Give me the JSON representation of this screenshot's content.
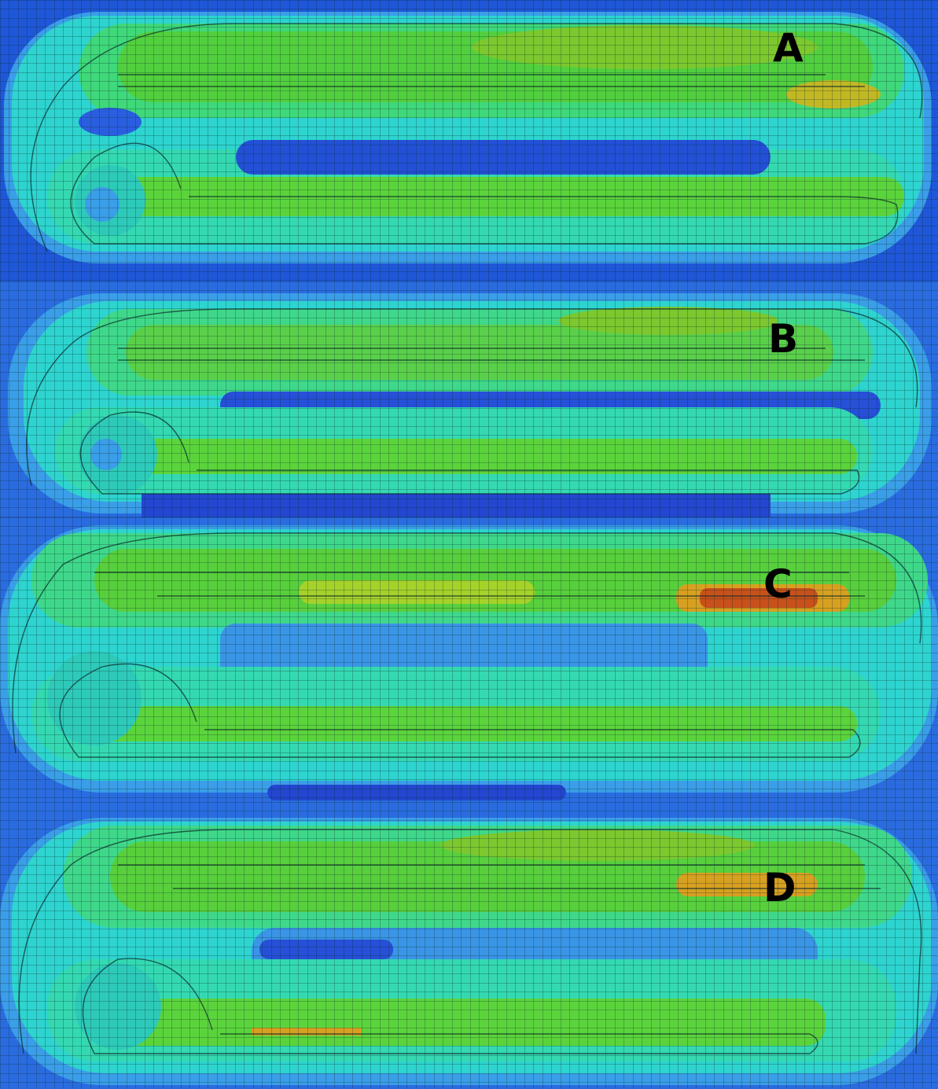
{
  "panels": [
    {
      "id": "a",
      "label": "A"
    },
    {
      "id": "b",
      "label": "B"
    },
    {
      "id": "c",
      "label": "C"
    },
    {
      "id": "d",
      "label": "D"
    }
  ],
  "colors": {
    "background": "#1a4fd0",
    "low_blue": "#2a5ee0",
    "mid_blue": "#3a95e6",
    "cyan": "#2ed8d0",
    "aqua_green": "#34e0a0",
    "green": "#4cd24a",
    "yellow_green": "#a6d22a",
    "orange": "#d8a020",
    "red": "#c8501a",
    "mesh_line": "#0b2a2a",
    "label": "#000000"
  }
}
